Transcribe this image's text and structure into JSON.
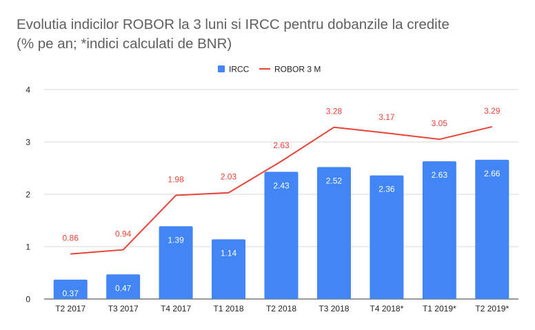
{
  "chart_data": {
    "type": "bar",
    "title_lines": [
      "Evolutia indicilor ROBOR la 3 luni si IRCC pentru dobanzile la credite",
      "(% pe an; *indici calculati de BNR)"
    ],
    "categories": [
      "T2 2017",
      "T3 2017",
      "T4 2017",
      "T1 2018",
      "T2 2018",
      "T3 2018",
      "T4 2018*",
      "T1 2019*",
      "T2 2019*"
    ],
    "series": [
      {
        "name": "IRCC",
        "type": "bar",
        "color": "#4285f4",
        "values": [
          0.37,
          0.47,
          1.39,
          1.14,
          2.43,
          2.52,
          2.36,
          2.63,
          2.66
        ],
        "labels": [
          "0.37",
          "0.47",
          "1.39",
          "1.14",
          "2.43",
          "2.52",
          "2.36",
          "2.63",
          "2.66"
        ]
      },
      {
        "name": "ROBOR 3 M",
        "type": "line",
        "color": "#ea4335",
        "values": [
          0.86,
          0.94,
          1.98,
          2.03,
          2.63,
          3.28,
          3.17,
          3.05,
          3.29
        ],
        "labels": [
          "0.86",
          "0.94",
          "1.98",
          "2.03",
          "2.63",
          "3.28",
          "3.17",
          "3.05",
          "3.29"
        ]
      }
    ],
    "ylim": [
      0,
      4
    ],
    "yticks": [
      "0",
      "1",
      "2",
      "3",
      "4"
    ],
    "xlabel": "",
    "ylabel": "",
    "grid": true,
    "legend_position": "top-center"
  }
}
